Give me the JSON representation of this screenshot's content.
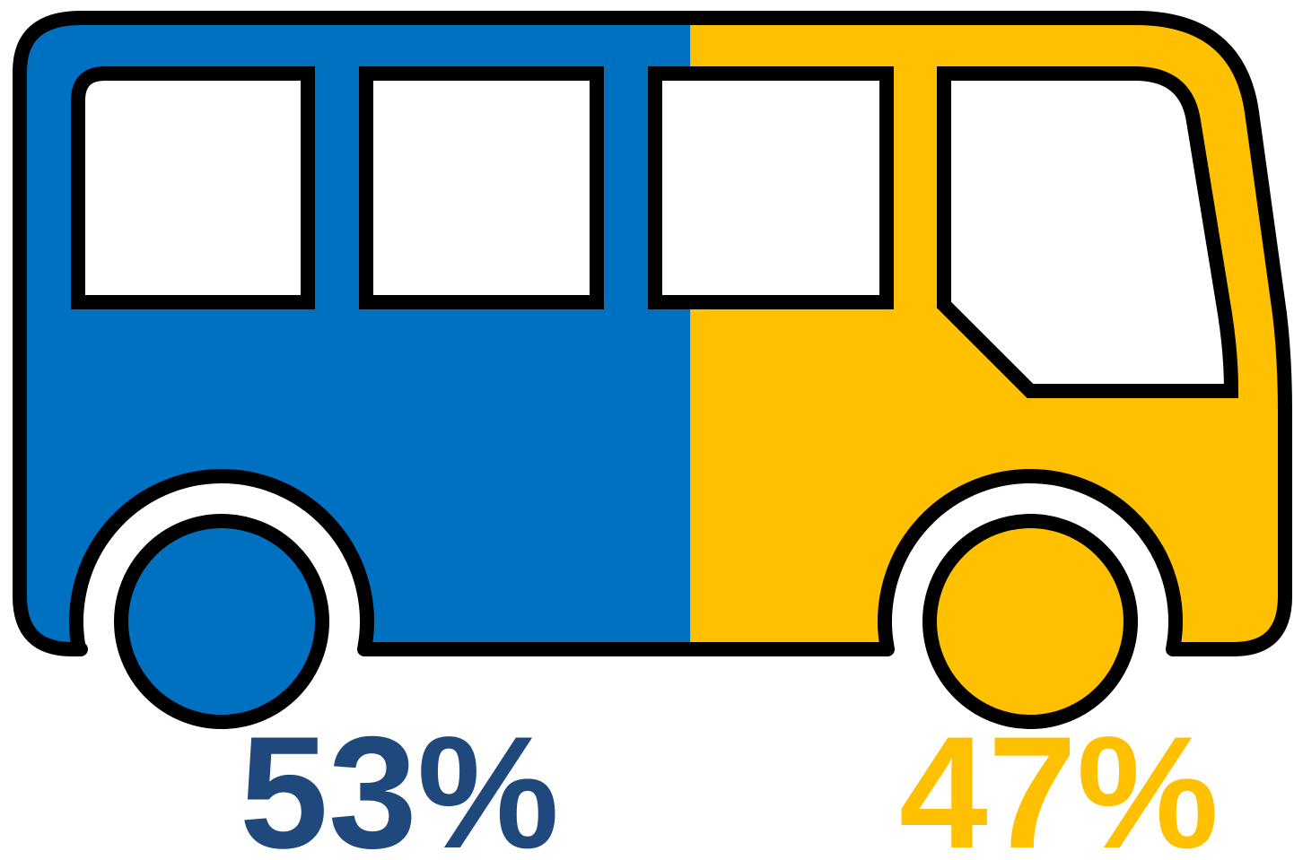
{
  "chart_data": {
    "type": "pictogram",
    "values": [
      53,
      47
    ],
    "value_labels": [
      "53%",
      "47%"
    ],
    "colors": [
      "#0070c0",
      "#ffc000"
    ],
    "label_colors": [
      "#1f497d",
      "#ffc000"
    ]
  }
}
